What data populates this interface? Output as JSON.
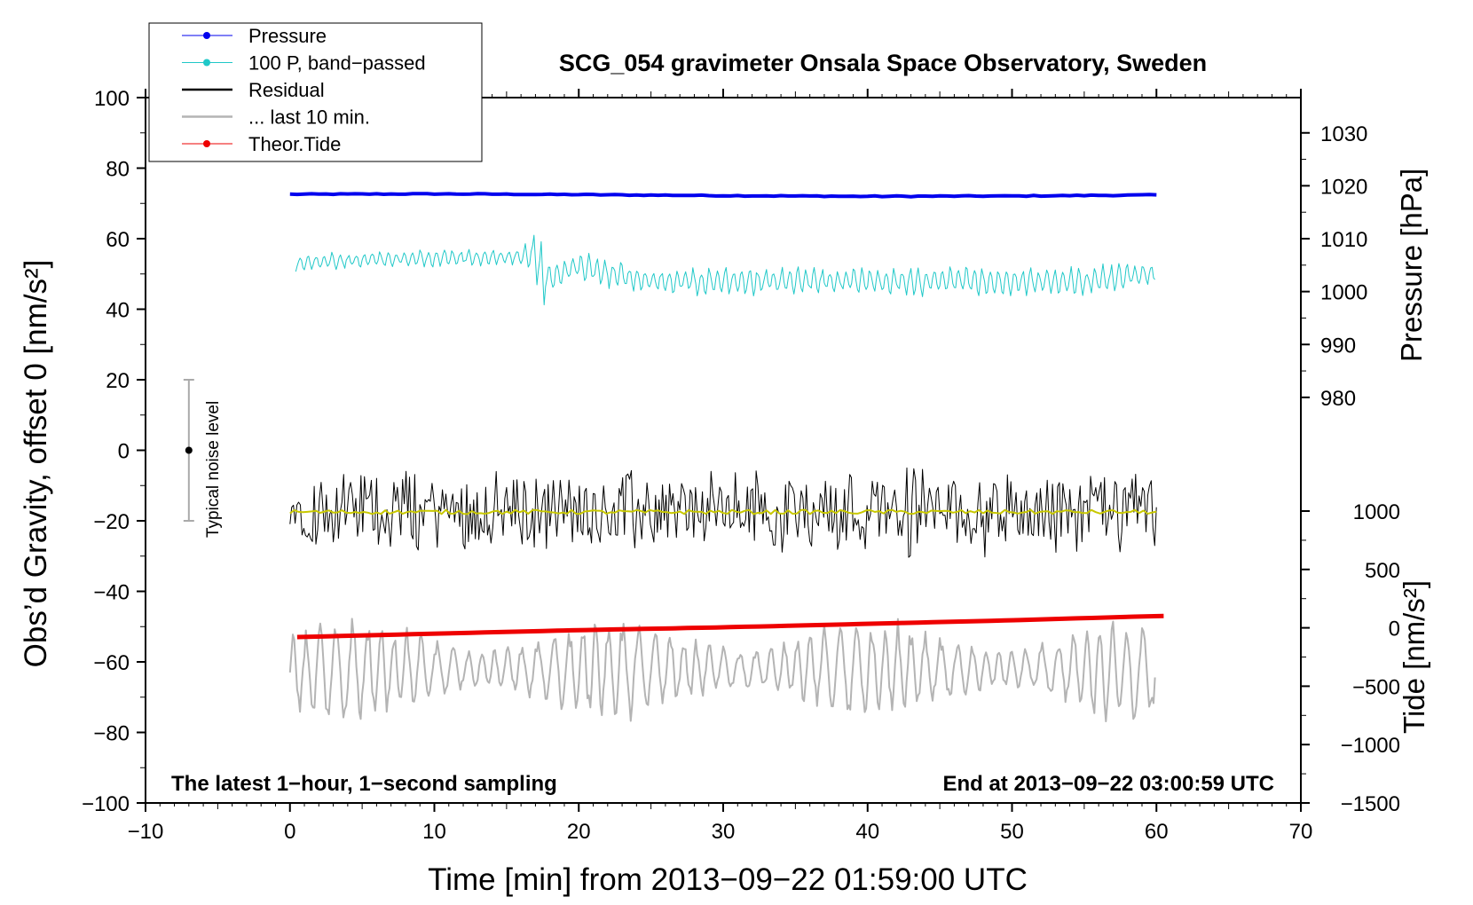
{
  "chart_data": {
    "type": "line",
    "title": "SCG_054 gravimeter Onsala Space Observatory, Sweden",
    "xlabel": "Time [min] from 2013−09−22 01:59:00 UTC",
    "ylabel_left": "Obs’d Gravity, offset 0 [nm/s²]",
    "ylabel_right_pressure": "Pressure [hPa]",
    "ylabel_right_tide": "Tide [nm/s²]",
    "xlim": [
      -10,
      70
    ],
    "ylim": [
      -100,
      100
    ],
    "x_ticks": [
      "−10",
      "0",
      "10",
      "20",
      "30",
      "40",
      "50",
      "60",
      "70"
    ],
    "y_ticks": [
      "−100",
      "−80",
      "−60",
      "−40",
      "−20",
      "0",
      "20",
      "40",
      "60",
      "80",
      "100"
    ],
    "pressure_axis": {
      "ticks": [
        980,
        990,
        1000,
        1010,
        1020,
        1030
      ]
    },
    "tide_axis": {
      "ticks": [
        "−1500",
        "−1000",
        "−500",
        "0",
        "500",
        "1000"
      ]
    },
    "annotation_left": "The latest 1−hour, 1−second sampling",
    "annotation_right": "End at 2013−09−22 03:00:59 UTC",
    "noise_bar": {
      "label": "Typical noise level",
      "x": -7,
      "center": 0,
      "low": -20,
      "high": 20
    },
    "legend_position": "top-left",
    "series": [
      {
        "name": "Pressure",
        "color": "#0000ee",
        "marker": true,
        "x": [
          0,
          10,
          20,
          30,
          40,
          50,
          60
        ],
        "y": [
          72.6,
          72.7,
          72.5,
          72.2,
          72.0,
          72.1,
          72.4
        ]
      },
      {
        "name": "100 P, band−passed",
        "color": "#20c8c8",
        "marker": true,
        "x": [
          0,
          5,
          10,
          16.5,
          17,
          17.5,
          20,
          25,
          30,
          35,
          40,
          45,
          50,
          55,
          60
        ],
        "y": [
          53,
          54,
          54.5,
          55,
          57,
          48,
          52,
          48,
          48,
          48,
          48,
          48,
          48,
          48,
          50
        ]
      },
      {
        "name": "Residual",
        "color": "#000000",
        "marker": false,
        "x": [
          0,
          10,
          20,
          30,
          40,
          43,
          50,
          60
        ],
        "y": [
          -17,
          -17,
          -17,
          -17,
          -17,
          -17,
          -17,
          -17
        ]
      },
      {
        "name": "... last 10 min.",
        "color": "#b4b4b4",
        "marker": false,
        "x": [
          0,
          10,
          20,
          30,
          40,
          50,
          60
        ],
        "y": [
          -63,
          -62,
          -62,
          -62,
          -62,
          -62,
          -63
        ]
      },
      {
        "name": "Theor.Tide",
        "color": "#ee0000",
        "marker": true,
        "x": [
          0,
          10,
          20,
          30,
          40,
          50,
          60
        ],
        "y": [
          -53,
          -52,
          -51,
          -50.2,
          -49.2,
          -48.2,
          -47
        ]
      }
    ],
    "running_mean": {
      "color": "#c8c800",
      "level": -17.5
    }
  }
}
